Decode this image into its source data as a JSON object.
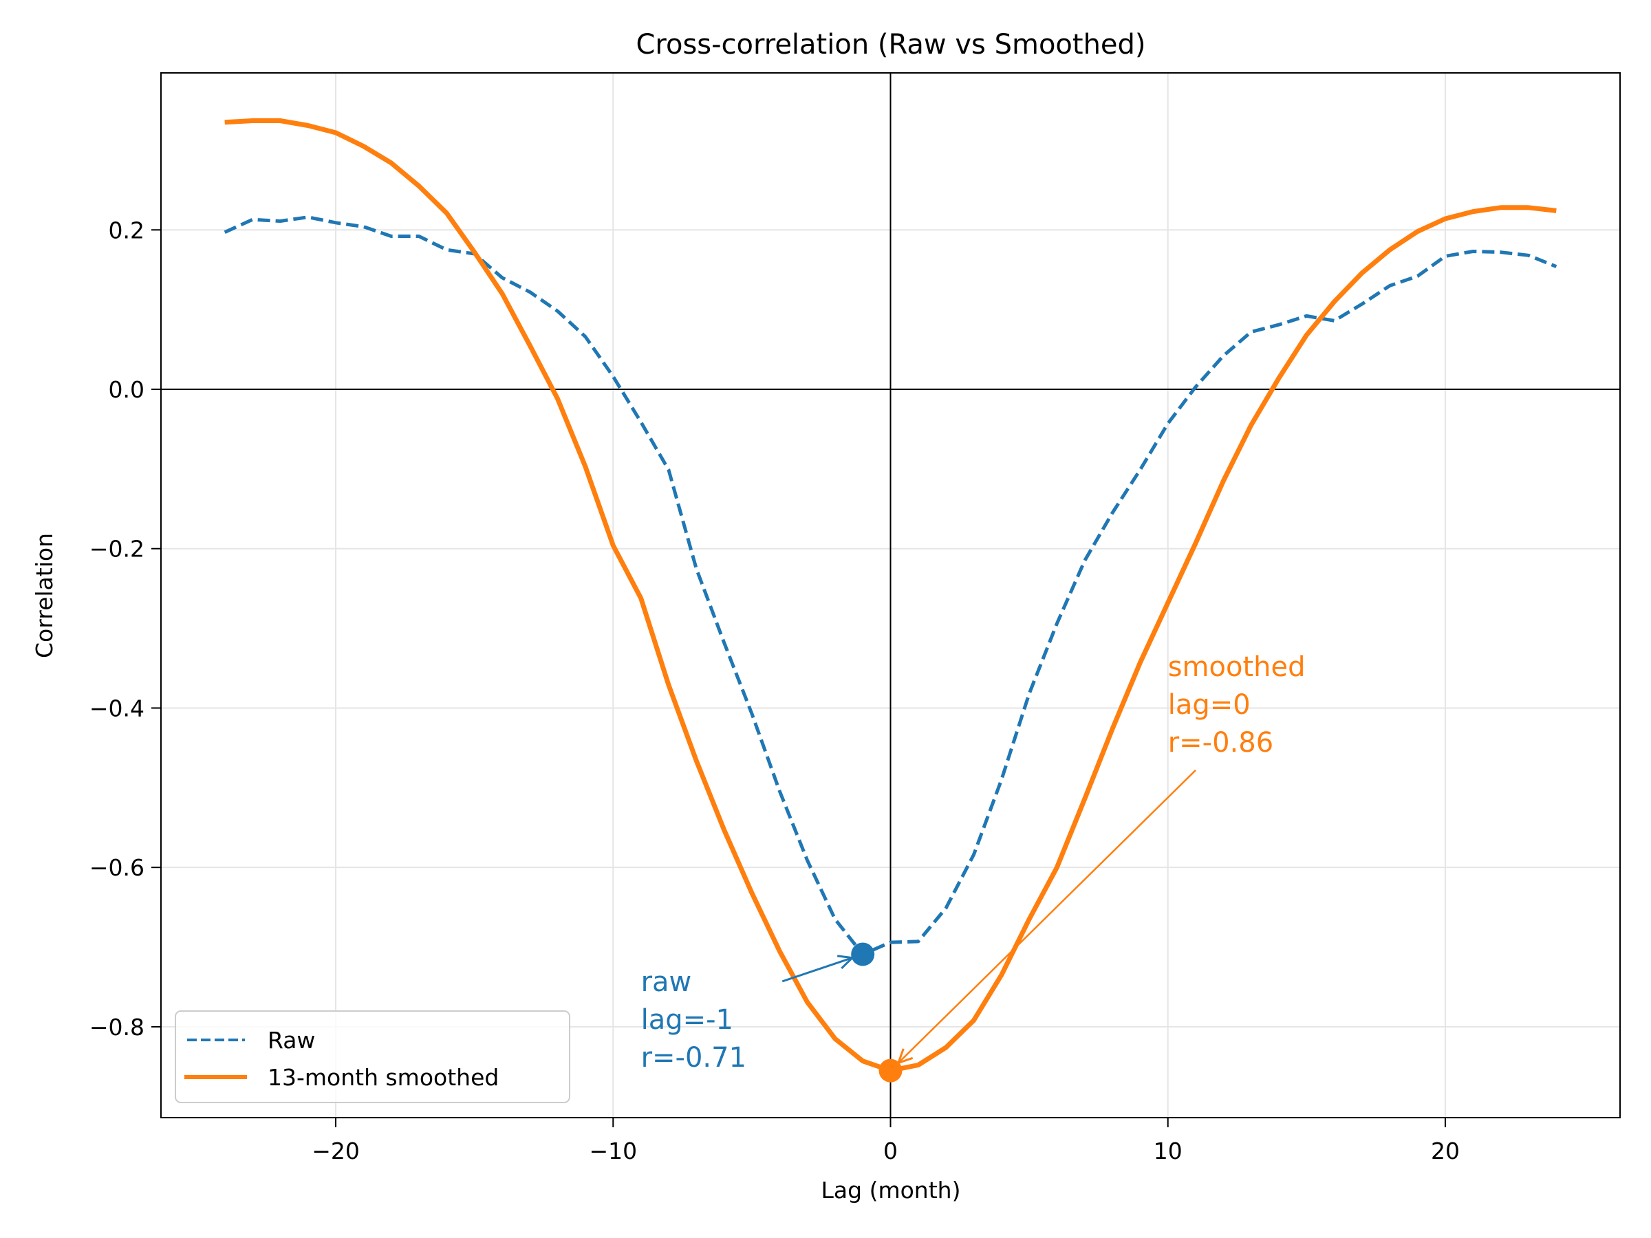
{
  "chart_data": {
    "type": "line",
    "title": "Cross-correlation (Raw vs Smoothed)",
    "xlabel": "Lag (month)",
    "ylabel": "Correlation",
    "xlim": [
      -26.3,
      26.3
    ],
    "ylim": [
      -0.914,
      0.397
    ],
    "xticks": [
      -20,
      -10,
      0,
      10,
      20
    ],
    "xtick_labels": [
      "−20",
      "−10",
      "0",
      "10",
      "20"
    ],
    "yticks": [
      0.2,
      0.0,
      -0.2,
      -0.4,
      -0.6,
      -0.8
    ],
    "ytick_labels": [
      "0.2",
      "0.0",
      "−0.2",
      "−0.4",
      "−0.6",
      "−0.8"
    ],
    "grid": true,
    "reference_lines": {
      "x": 0,
      "y": 0
    },
    "legend": {
      "position": "lower-left",
      "entries": [
        {
          "label": "Raw",
          "style": "dashed",
          "color": "#1f77b4"
        },
        {
          "label": "13-month smoothed",
          "style": "solid",
          "color": "#ff7f0e"
        }
      ]
    },
    "x": [
      -24,
      -23,
      -22,
      -21,
      -20,
      -19,
      -18,
      -17,
      -16,
      -15,
      -14,
      -13,
      -12,
      -11,
      -10,
      -9,
      -8,
      -7,
      -6,
      -5,
      -4,
      -3,
      -2,
      -1,
      0,
      1,
      2,
      3,
      4,
      5,
      6,
      7,
      8,
      9,
      10,
      11,
      12,
      13,
      14,
      15,
      16,
      17,
      18,
      19,
      20,
      21,
      22,
      23,
      24
    ],
    "series": [
      {
        "name": "Raw",
        "color": "#1f77b4",
        "style": "dashed",
        "values": [
          0.197,
          0.213,
          0.211,
          0.216,
          0.209,
          0.204,
          0.192,
          0.192,
          0.175,
          0.17,
          0.14,
          0.122,
          0.098,
          0.066,
          0.016,
          -0.041,
          -0.101,
          -0.225,
          -0.318,
          -0.407,
          -0.504,
          -0.591,
          -0.665,
          -0.709,
          -0.694,
          -0.693,
          -0.651,
          -0.584,
          -0.49,
          -0.382,
          -0.294,
          -0.215,
          -0.155,
          -0.101,
          -0.043,
          0.003,
          0.042,
          0.072,
          0.081,
          0.092,
          0.086,
          0.107,
          0.13,
          0.142,
          0.167,
          0.173,
          0.172,
          0.168,
          0.154
        ]
      },
      {
        "name": "13-month smoothed",
        "color": "#ff7f0e",
        "style": "solid",
        "values": [
          0.335,
          0.337,
          0.337,
          0.331,
          0.322,
          0.305,
          0.284,
          0.255,
          0.221,
          0.172,
          0.12,
          0.055,
          -0.012,
          -0.097,
          -0.196,
          -0.262,
          -0.371,
          -0.466,
          -0.553,
          -0.632,
          -0.705,
          -0.769,
          -0.815,
          -0.843,
          -0.855,
          -0.848,
          -0.826,
          -0.792,
          -0.735,
          -0.665,
          -0.6,
          -0.514,
          -0.426,
          -0.343,
          -0.268,
          -0.193,
          -0.115,
          -0.045,
          0.014,
          0.068,
          0.11,
          0.146,
          0.175,
          0.198,
          0.214,
          0.223,
          0.228,
          0.228,
          0.224
        ]
      }
    ],
    "annotations": [
      {
        "series": "Raw",
        "point": {
          "x": -1,
          "y": -0.709
        },
        "text_anchor": {
          "x": -9.0,
          "y": -0.755
        },
        "arrow_from": {
          "x": -3.9,
          "y": -0.743
        },
        "lines": [
          "raw",
          "lag=-1",
          "r=-0.71"
        ],
        "color": "#1f77b4"
      },
      {
        "series": "13-month smoothed",
        "point": {
          "x": 0,
          "y": -0.855
        },
        "text_anchor": {
          "x": 10.0,
          "y": -0.36
        },
        "arrow_from": {
          "x": 11.0,
          "y": -0.478
        },
        "lines": [
          "smoothed",
          "lag=0",
          "r=-0.86"
        ],
        "color": "#ff7f0e"
      }
    ]
  }
}
